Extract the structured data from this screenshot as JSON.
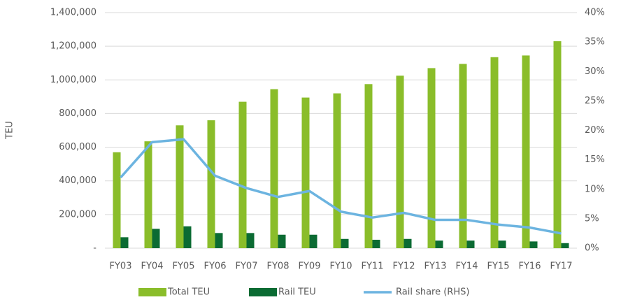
{
  "chart_data": {
    "type": "bar",
    "y_label": "TEU",
    "categories": [
      "FY03",
      "FY04",
      "FY05",
      "FY06",
      "FY07",
      "FY08",
      "FY09",
      "FY10",
      "FY11",
      "FY12",
      "FY13",
      "FY14",
      "FY15",
      "FY16",
      "FY17"
    ],
    "series": [
      {
        "name": "Total TEU",
        "color": "#8abd2a",
        "type": "bar",
        "values": [
          570000,
          635000,
          730000,
          760000,
          870000,
          945000,
          895000,
          920000,
          975000,
          1025000,
          1070000,
          1095000,
          1135000,
          1145000,
          1230000
        ]
      },
      {
        "name": "Rail TEU",
        "color": "#0b6b33",
        "type": "bar",
        "values": [
          65000,
          115000,
          130000,
          90000,
          90000,
          80000,
          80000,
          55000,
          50000,
          55000,
          45000,
          45000,
          45000,
          40000,
          30000
        ]
      },
      {
        "name": "Rail share (RHS)",
        "color": "#6cb4e0",
        "type": "line",
        "axis": "y2",
        "values": [
          12,
          18,
          18.5,
          12.3,
          10.2,
          8.7,
          9.7,
          6.2,
          5.2,
          6,
          4.8,
          4.8,
          4,
          3.5,
          2.5
        ]
      }
    ],
    "ylim": [
      0,
      1400000
    ],
    "yticks": [
      {
        "value": 0,
        "label": "-"
      },
      {
        "value": 200000,
        "label": "200,000"
      },
      {
        "value": 400000,
        "label": "400,000"
      },
      {
        "value": 600000,
        "label": "600,000"
      },
      {
        "value": 800000,
        "label": "800,000"
      },
      {
        "value": 1000000,
        "label": "1,000,000"
      },
      {
        "value": 1200000,
        "label": "1,200,000"
      },
      {
        "value": 1400000,
        "label": "1,400,000"
      }
    ],
    "y2lim": [
      0,
      40
    ],
    "y2ticks": [
      {
        "value": 0,
        "label": "0%"
      },
      {
        "value": 5,
        "label": "5%"
      },
      {
        "value": 10,
        "label": "10%"
      },
      {
        "value": 15,
        "label": "15%"
      },
      {
        "value": 20,
        "label": "20%"
      },
      {
        "value": 25,
        "label": "25%"
      },
      {
        "value": 30,
        "label": "30%"
      },
      {
        "value": 35,
        "label": "35%"
      },
      {
        "value": 40,
        "label": "40%"
      }
    ],
    "grid": true,
    "legend": "bottom"
  }
}
